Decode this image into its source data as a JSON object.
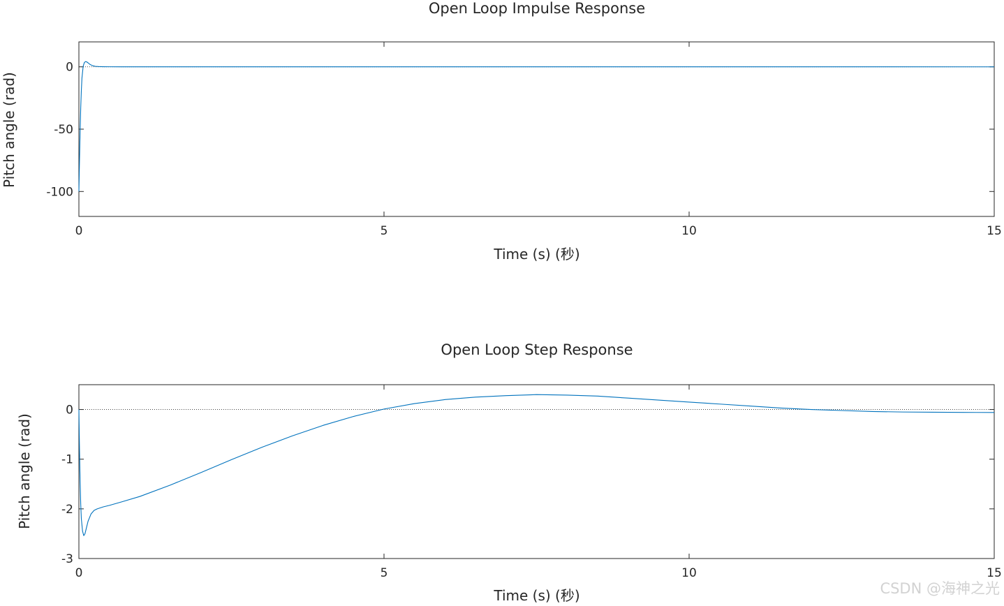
{
  "chart_data": [
    {
      "type": "line",
      "title": "Open Loop Impulse Response",
      "xlabel": "Time (s) (秒)",
      "ylabel": "Pitch angle (rad)",
      "xlim": [
        0,
        15
      ],
      "ylim": [
        -120,
        20
      ],
      "xticks": [
        0,
        5,
        10,
        15
      ],
      "yticks": [
        -100,
        -50,
        0
      ],
      "ytick_labels": [
        "-100",
        "-50",
        "0"
      ],
      "series": [
        {
          "color": "#0072bd",
          "x": [
            0,
            0.01,
            0.02,
            0.03,
            0.04,
            0.05,
            0.07,
            0.09,
            0.11,
            0.13,
            0.15,
            0.18,
            0.22,
            0.27,
            0.32,
            0.4,
            0.5,
            0.7,
            1,
            2,
            4,
            7,
            10,
            13,
            15
          ],
          "y": [
            -100,
            -75,
            -52,
            -33,
            -19,
            -9,
            0.5,
            3.5,
            4.2,
            3.9,
            3.2,
            2.0,
            1.0,
            0.4,
            0.2,
            0.1,
            0.05,
            0.04,
            0.03,
            0.03,
            0.02,
            0.01,
            0.0,
            -0.01,
            -0.02
          ]
        }
      ],
      "reference_line": {
        "y": 0,
        "style": "dotted"
      }
    },
    {
      "type": "line",
      "title": "Open Loop Step Response",
      "xlabel": "Time (s) (秒)",
      "ylabel": "Pitch angle (rad)",
      "xlim": [
        0,
        15
      ],
      "ylim": [
        -3,
        0.5
      ],
      "xticks": [
        0,
        5,
        10,
        15
      ],
      "yticks": [
        -3,
        -2,
        -1,
        0
      ],
      "ytick_labels": [
        "-3",
        "-2",
        "-1",
        "0"
      ],
      "series": [
        {
          "color": "#0072bd",
          "x": [
            0,
            0.01,
            0.02,
            0.03,
            0.04,
            0.06,
            0.08,
            0.1,
            0.12,
            0.15,
            0.2,
            0.25,
            0.3,
            0.4,
            0.5,
            0.7,
            1,
            1.5,
            2,
            2.5,
            3,
            3.5,
            4,
            4.5,
            5,
            5.5,
            6,
            6.5,
            7,
            7.5,
            8,
            8.5,
            9,
            9.5,
            10,
            10.5,
            11,
            11.5,
            12,
            12.5,
            13,
            13.5,
            14,
            14.5,
            15
          ],
          "y": [
            0,
            -0.8,
            -1.45,
            -1.9,
            -2.2,
            -2.45,
            -2.54,
            -2.5,
            -2.4,
            -2.25,
            -2.1,
            -2.03,
            -2.0,
            -1.96,
            -1.93,
            -1.86,
            -1.75,
            -1.52,
            -1.27,
            -1.01,
            -0.76,
            -0.53,
            -0.32,
            -0.14,
            0.01,
            0.12,
            0.2,
            0.25,
            0.28,
            0.3,
            0.29,
            0.27,
            0.23,
            0.19,
            0.15,
            0.11,
            0.07,
            0.03,
            0.0,
            -0.02,
            -0.04,
            -0.05,
            -0.055,
            -0.058,
            -0.06
          ]
        }
      ],
      "reference_line": {
        "y": 0,
        "style": "dotted"
      }
    }
  ],
  "watermark": "CSDN @海神之光"
}
